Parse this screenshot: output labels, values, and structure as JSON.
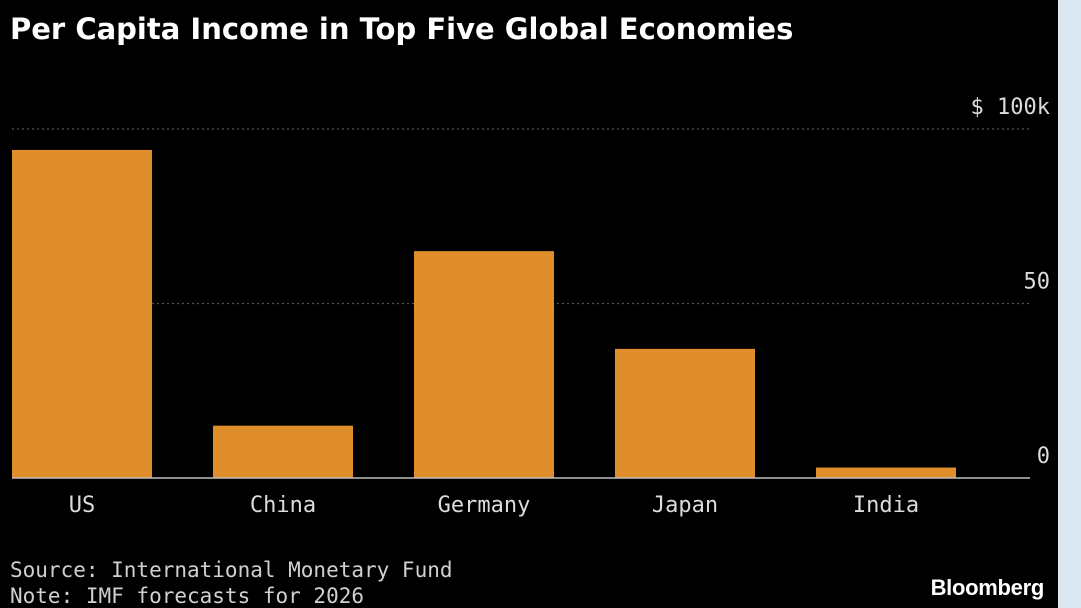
{
  "chart_data": {
    "type": "bar",
    "title": "Per Capita Income in Top Five Global Economies",
    "categories": [
      "US",
      "China",
      "Germany",
      "Japan",
      "India"
    ],
    "values": [
      94,
      15,
      65,
      37,
      3
    ],
    "ylim": [
      0,
      100
    ],
    "yticks": [
      {
        "value": 0,
        "label": "0"
      },
      {
        "value": 50,
        "label": "50"
      },
      {
        "value": 100,
        "label": "$ 100k"
      }
    ],
    "grid": true,
    "bar_color": "#e08e2b",
    "xlabel": "",
    "ylabel": ""
  },
  "footer": {
    "source": "Source: International Monetary Fund",
    "note": "Note: IMF forecasts for 2026",
    "brand": "Bloomberg"
  },
  "colors": {
    "background": "#000000",
    "page": "#dbe8f2",
    "text": "#dcdcdc",
    "grid": "#555555",
    "axis": "#bdbdbd"
  }
}
